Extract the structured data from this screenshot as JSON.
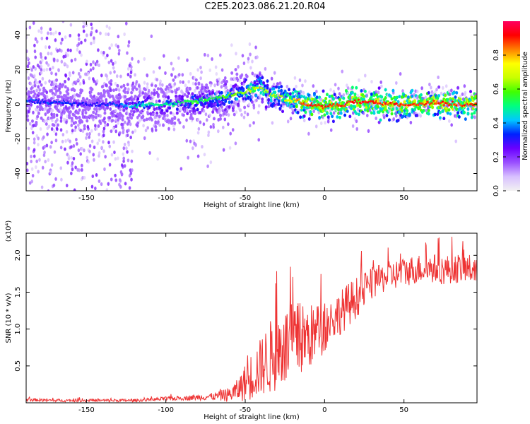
{
  "title": "C2E5.2023.086.21.20.R04",
  "chart_data": [
    {
      "type": "heatmap",
      "title": "",
      "xlabel": "Height of straight line (km)",
      "ylabel": "Frequency (Hz)",
      "xlim": [
        -188,
        96
      ],
      "ylim": [
        -50,
        48
      ],
      "xticks": [
        -150,
        -100,
        -50,
        0,
        50
      ],
      "yticks": [
        -40,
        -20,
        0,
        20,
        40
      ],
      "colorbar": {
        "label": "Normalized spectral amplitude",
        "range": [
          0.0,
          1.0
        ],
        "ticks": [
          0.0,
          0.2,
          0.4,
          0.6,
          0.8
        ],
        "colormap": [
          "#f2f2f2",
          "#d8c0ff",
          "#9a50ff",
          "#6a00ff",
          "#0020ff",
          "#00c8ff",
          "#00ff80",
          "#40ff00",
          "#c8ff00",
          "#ffff00",
          "#ff8000",
          "#ff0000",
          "#ff0060"
        ]
      },
      "ridge": {
        "x": [
          -185,
          -170,
          -150,
          -130,
          -120,
          -110,
          -100,
          -90,
          -80,
          -70,
          -60,
          -50,
          -40,
          -36,
          -30,
          -25,
          -20,
          -15,
          -10,
          -5,
          0,
          5,
          10,
          15,
          20,
          30,
          40,
          50,
          60,
          70,
          80,
          90,
          95
        ],
        "freq": [
          2,
          1,
          0,
          0,
          -1,
          0,
          0,
          1,
          2,
          3,
          5,
          7,
          10,
          6,
          5,
          3,
          2,
          1,
          0,
          0,
          -2,
          0,
          -1,
          1,
          2,
          1,
          0,
          0,
          0,
          1,
          0,
          0,
          0
        ],
        "amplitude": [
          0.3,
          0.3,
          0.25,
          0.3,
          0.4,
          0.45,
          0.45,
          0.45,
          0.5,
          0.5,
          0.55,
          0.6,
          0.65,
          0.6,
          0.6,
          0.65,
          0.7,
          0.8,
          0.85,
          0.85,
          0.85,
          0.85,
          0.85,
          0.85,
          0.9,
          0.85,
          0.85,
          0.85,
          0.85,
          0.85,
          0.85,
          0.85,
          0.85
        ]
      }
    },
    {
      "type": "line",
      "title": "",
      "xlabel": "Height of straight line (km)",
      "ylabel": "SNR (10 * v/v)",
      "y_multiplier": "(x10⁴)",
      "xlim": [
        -188,
        96
      ],
      "ylim": [
        0,
        2.3
      ],
      "xticks": [
        -150,
        -100,
        -50,
        0,
        50
      ],
      "yticks": [
        0.5,
        1.0,
        1.5,
        2.0
      ],
      "color": "#ee3333",
      "series": [
        {
          "x": [
            -188,
            -170,
            -150,
            -130,
            -120,
            -110,
            -100,
            -90,
            -80,
            -70,
            -60,
            -55,
            -50,
            -45,
            -40,
            -35,
            -30,
            -25,
            -20,
            -15,
            -10,
            -5,
            0,
            5,
            10,
            15,
            20,
            25,
            30,
            35,
            40,
            45,
            50,
            55,
            60,
            65,
            70,
            75,
            80,
            85,
            90,
            95
          ],
          "y": [
            0.04,
            0.03,
            0.03,
            0.03,
            0.03,
            0.04,
            0.05,
            0.06,
            0.07,
            0.08,
            0.1,
            0.15,
            0.25,
            0.35,
            0.45,
            0.55,
            0.65,
            0.7,
            0.75,
            0.8,
            0.85,
            0.9,
            1.0,
            1.1,
            1.2,
            1.3,
            1.4,
            1.5,
            1.6,
            1.65,
            1.7,
            1.72,
            1.75,
            1.78,
            1.8,
            1.8,
            1.8,
            1.78,
            1.8,
            1.8,
            1.8,
            1.78
          ],
          "noise": [
            0.02,
            0.02,
            0.02,
            0.02,
            0.02,
            0.02,
            0.03,
            0.03,
            0.04,
            0.05,
            0.1,
            0.15,
            0.25,
            0.35,
            0.4,
            0.5,
            0.55,
            0.55,
            0.55,
            0.5,
            0.45,
            0.4,
            0.35,
            0.3,
            0.3,
            0.3,
            0.28,
            0.25,
            0.22,
            0.2,
            0.2,
            0.2,
            0.2,
            0.2,
            0.2,
            0.2,
            0.2,
            0.2,
            0.2,
            0.2,
            0.2,
            0.2
          ]
        }
      ]
    }
  ]
}
